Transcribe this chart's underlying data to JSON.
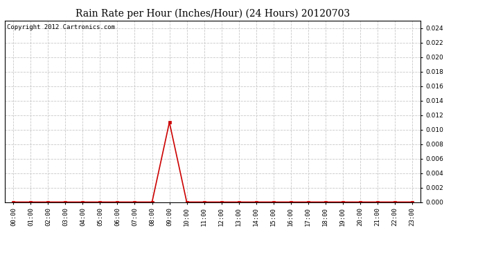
{
  "title": "Rain Rate per Hour (Inches/Hour) (24 Hours) 20120703",
  "copyright": "Copyright 2012 Cartronics.com",
  "background_color": "#ffffff",
  "plot_background_color": "#ffffff",
  "line_color": "#cc0000",
  "grid_color": "#c8c8c8",
  "x_labels": [
    "00:00",
    "01:00",
    "02:00",
    "03:00",
    "04:00",
    "05:00",
    "06:00",
    "07:00",
    "08:00",
    "09:00",
    "10:00",
    "11:00",
    "12:00",
    "13:00",
    "14:00",
    "15:00",
    "16:00",
    "17:00",
    "18:00",
    "19:00",
    "20:00",
    "21:00",
    "22:00",
    "23:00"
  ],
  "y_data": [
    0.0,
    0.0,
    0.0,
    0.0,
    0.0,
    0.0,
    0.0,
    0.0,
    0.0,
    0.011,
    0.0,
    0.0,
    0.0,
    0.0,
    0.0,
    0.0,
    0.0,
    0.0,
    0.0,
    0.0,
    0.0,
    0.0,
    0.0,
    0.0
  ],
  "ylim": [
    0.0,
    0.025
  ],
  "yticks": [
    0.0,
    0.002,
    0.004,
    0.006,
    0.008,
    0.01,
    0.012,
    0.014,
    0.016,
    0.018,
    0.02,
    0.022,
    0.024
  ],
  "marker": "s",
  "marker_size": 2.5,
  "line_width": 1.2,
  "title_fontsize": 10,
  "copyright_fontsize": 6.5,
  "tick_fontsize": 6.5
}
